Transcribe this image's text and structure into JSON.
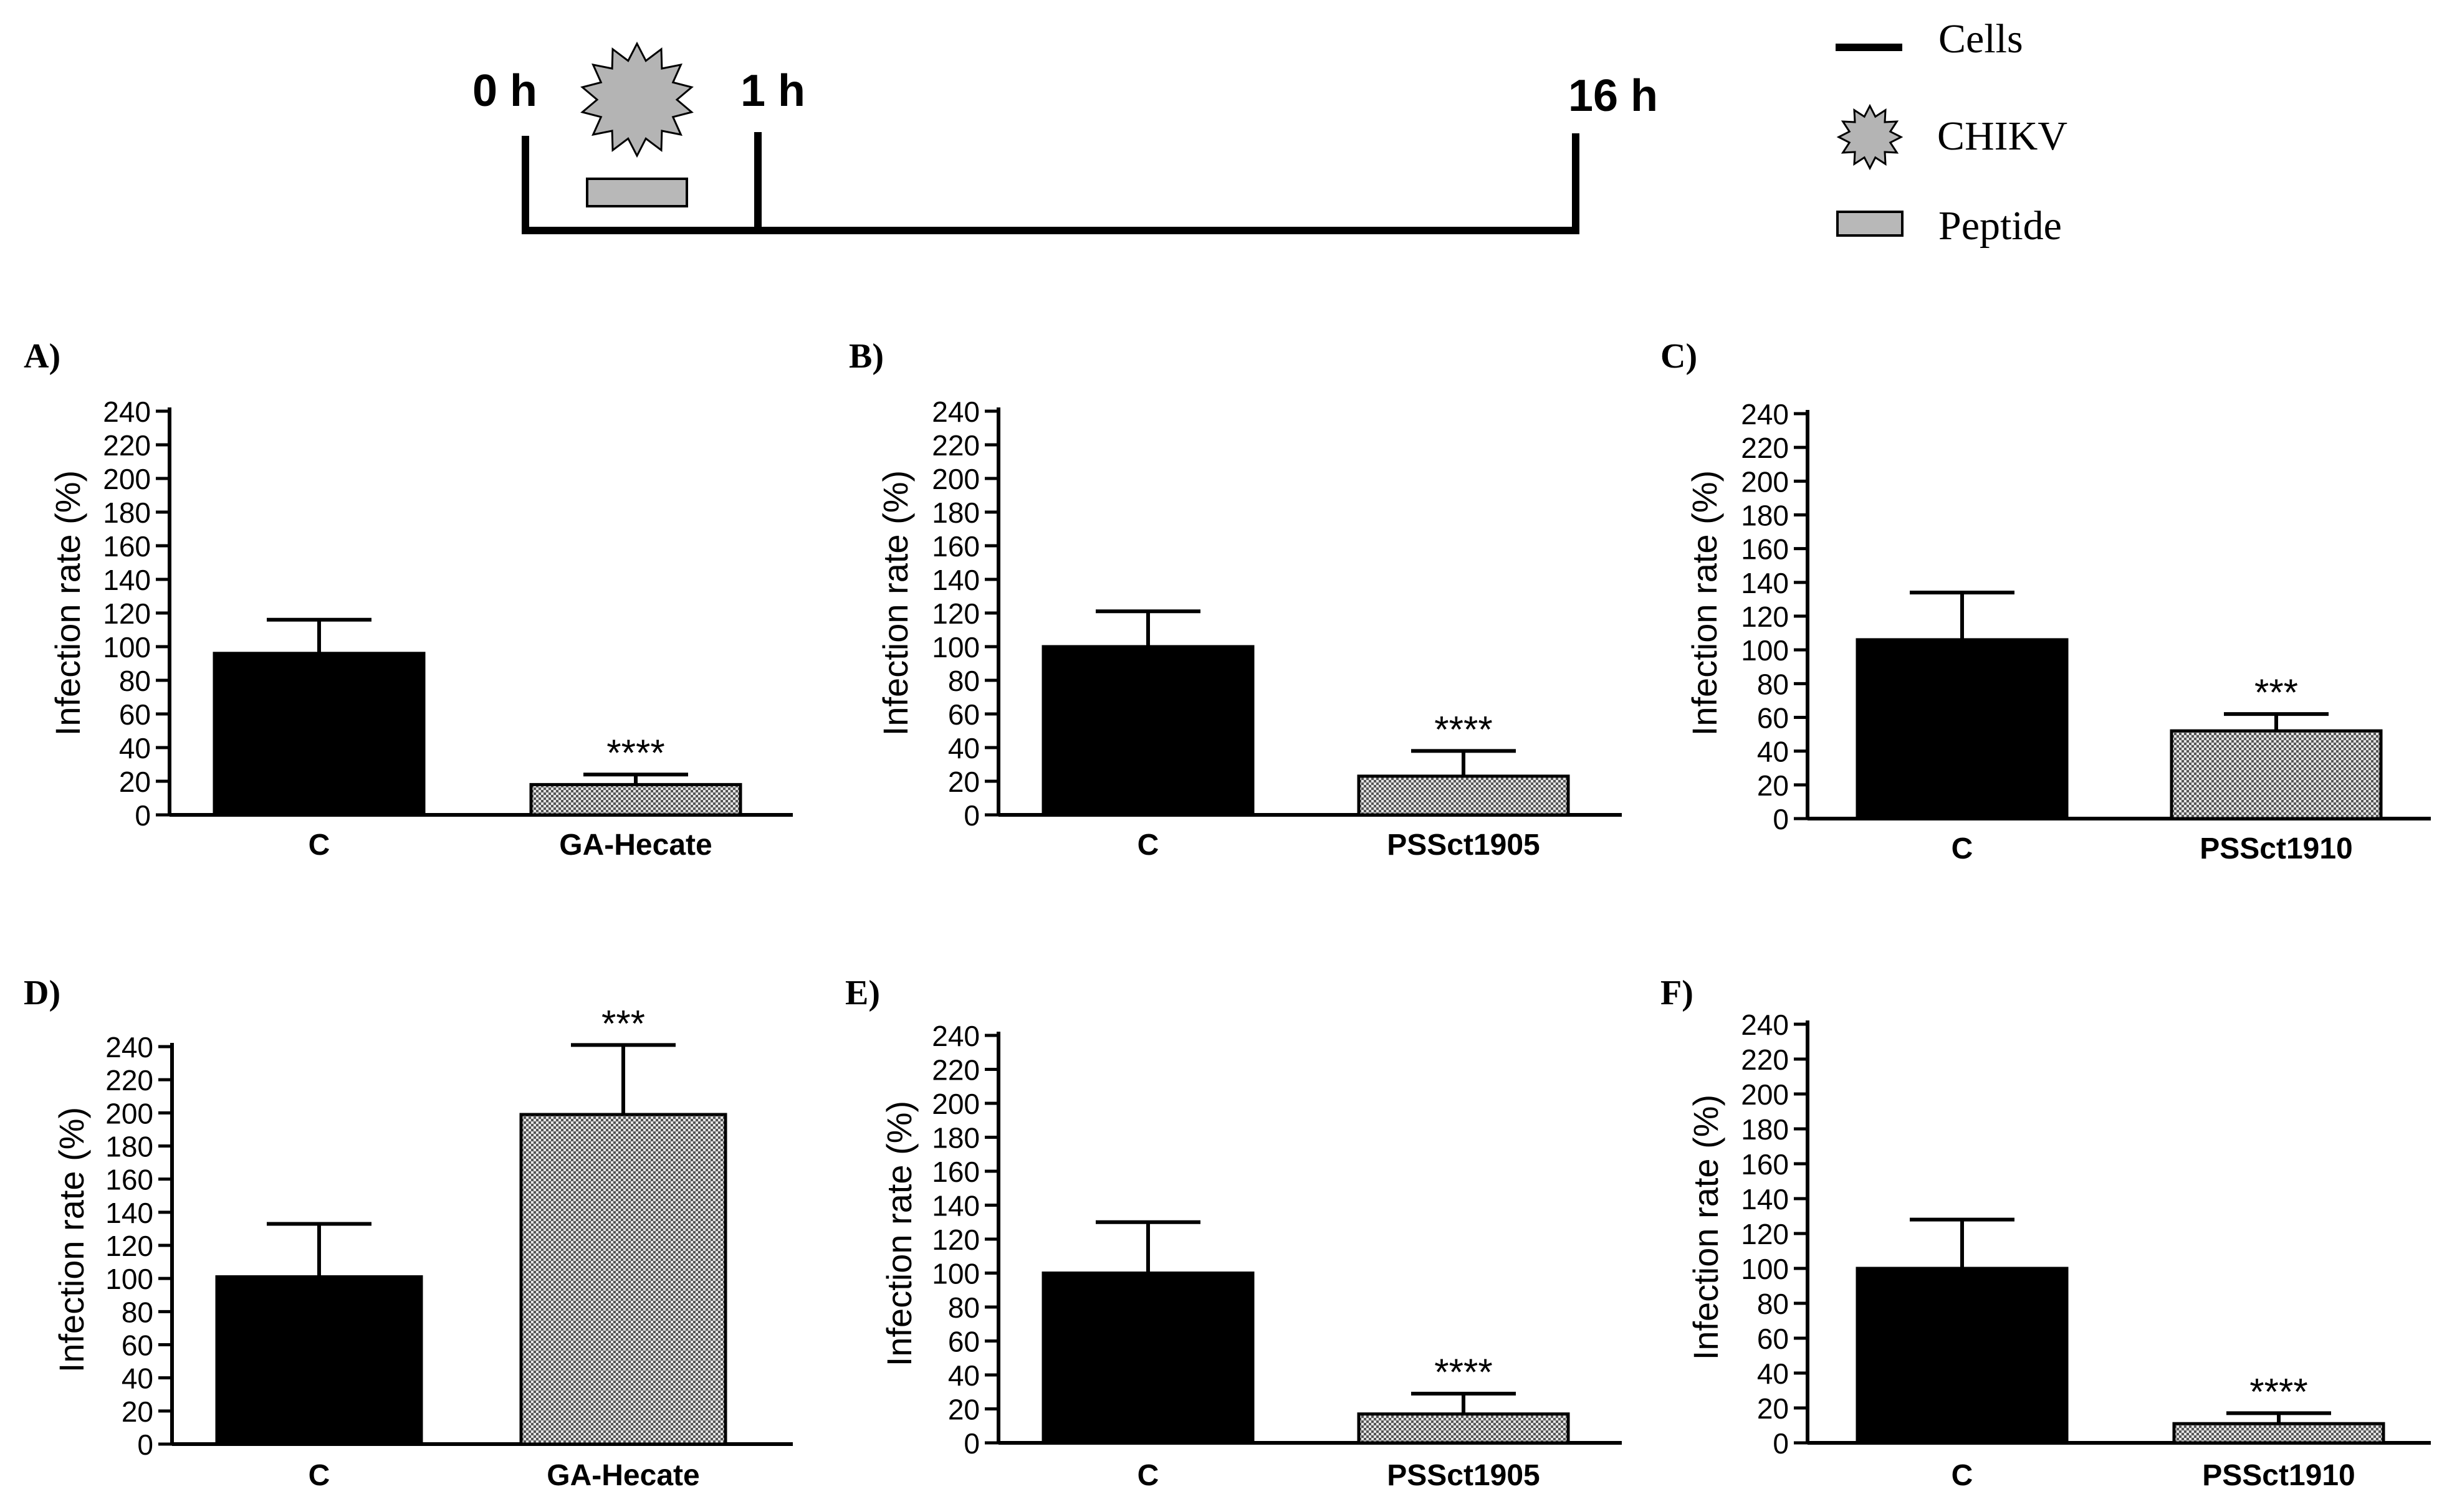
{
  "timeline": {
    "t0": "0 h",
    "t1": "1 h",
    "t2": "16 h"
  },
  "legend": {
    "cells": "Cells",
    "virus": "CHIKV",
    "peptide": "Peptide"
  },
  "colors": {
    "bar_control": "#000000",
    "bar_peptide": "#c4c4c4",
    "virus_fill": "#b4b4b4",
    "peptide_fill": "#b8b8b8"
  },
  "chart_data": [
    {
      "type": "bar",
      "panel": "A)",
      "ylabel": "Infection rate (%)",
      "ylim": [
        0,
        240
      ],
      "yticks": [
        "0",
        "20",
        "40",
        "60",
        "80",
        "100",
        "120",
        "140",
        "160",
        "180",
        "200",
        "220",
        "240"
      ],
      "categories": [
        "C",
        "GA-Hecate"
      ],
      "values": [
        96,
        18
      ],
      "errors": [
        20,
        6
      ],
      "significance": [
        "",
        "****"
      ]
    },
    {
      "type": "bar",
      "panel": "B)",
      "ylabel": "Infection rate (%)",
      "ylim": [
        0,
        240
      ],
      "yticks": [
        "0",
        "20",
        "40",
        "60",
        "80",
        "100",
        "120",
        "140",
        "160",
        "180",
        "200",
        "220",
        "240"
      ],
      "categories": [
        "C",
        "PSSct1905"
      ],
      "values": [
        100,
        23
      ],
      "errors": [
        21,
        15
      ],
      "significance": [
        "",
        "****"
      ]
    },
    {
      "type": "bar",
      "panel": "C)",
      "ylabel": "Infection rate (%)",
      "ylim": [
        0,
        240
      ],
      "yticks": [
        "0",
        "20",
        "40",
        "60",
        "80",
        "100",
        "120",
        "140",
        "160",
        "180",
        "200",
        "220",
        "240"
      ],
      "categories": [
        "C",
        "PSSct1910"
      ],
      "values": [
        106,
        52
      ],
      "errors": [
        28,
        10
      ],
      "significance": [
        "",
        "***"
      ]
    },
    {
      "type": "bar",
      "panel": "D)",
      "ylabel": "Infection rate (%)",
      "ylim": [
        0,
        240
      ],
      "yticks": [
        "0",
        "20",
        "40",
        "60",
        "80",
        "100",
        "120",
        "140",
        "160",
        "180",
        "200",
        "220",
        "240"
      ],
      "categories": [
        "C",
        "GA-Hecate"
      ],
      "values": [
        101,
        199
      ],
      "errors": [
        32,
        42
      ],
      "significance": [
        "",
        "***"
      ]
    },
    {
      "type": "bar",
      "panel": "E)",
      "ylabel": "Infection rate (%)",
      "ylim": [
        0,
        240
      ],
      "yticks": [
        "0",
        "20",
        "40",
        "60",
        "80",
        "100",
        "120",
        "140",
        "160",
        "180",
        "200",
        "220",
        "240"
      ],
      "categories": [
        "C",
        "PSSct1905"
      ],
      "values": [
        100,
        17
      ],
      "errors": [
        30,
        12
      ],
      "significance": [
        "",
        "****"
      ]
    },
    {
      "type": "bar",
      "panel": "F)",
      "ylabel": "Infection rate (%)",
      "ylim": [
        0,
        240
      ],
      "yticks": [
        "0",
        "20",
        "40",
        "60",
        "80",
        "100",
        "120",
        "140",
        "160",
        "180",
        "200",
        "220",
        "240"
      ],
      "categories": [
        "C",
        "PSSct1910"
      ],
      "values": [
        100,
        11
      ],
      "errors": [
        28,
        6
      ],
      "significance": [
        "",
        "****"
      ]
    }
  ]
}
